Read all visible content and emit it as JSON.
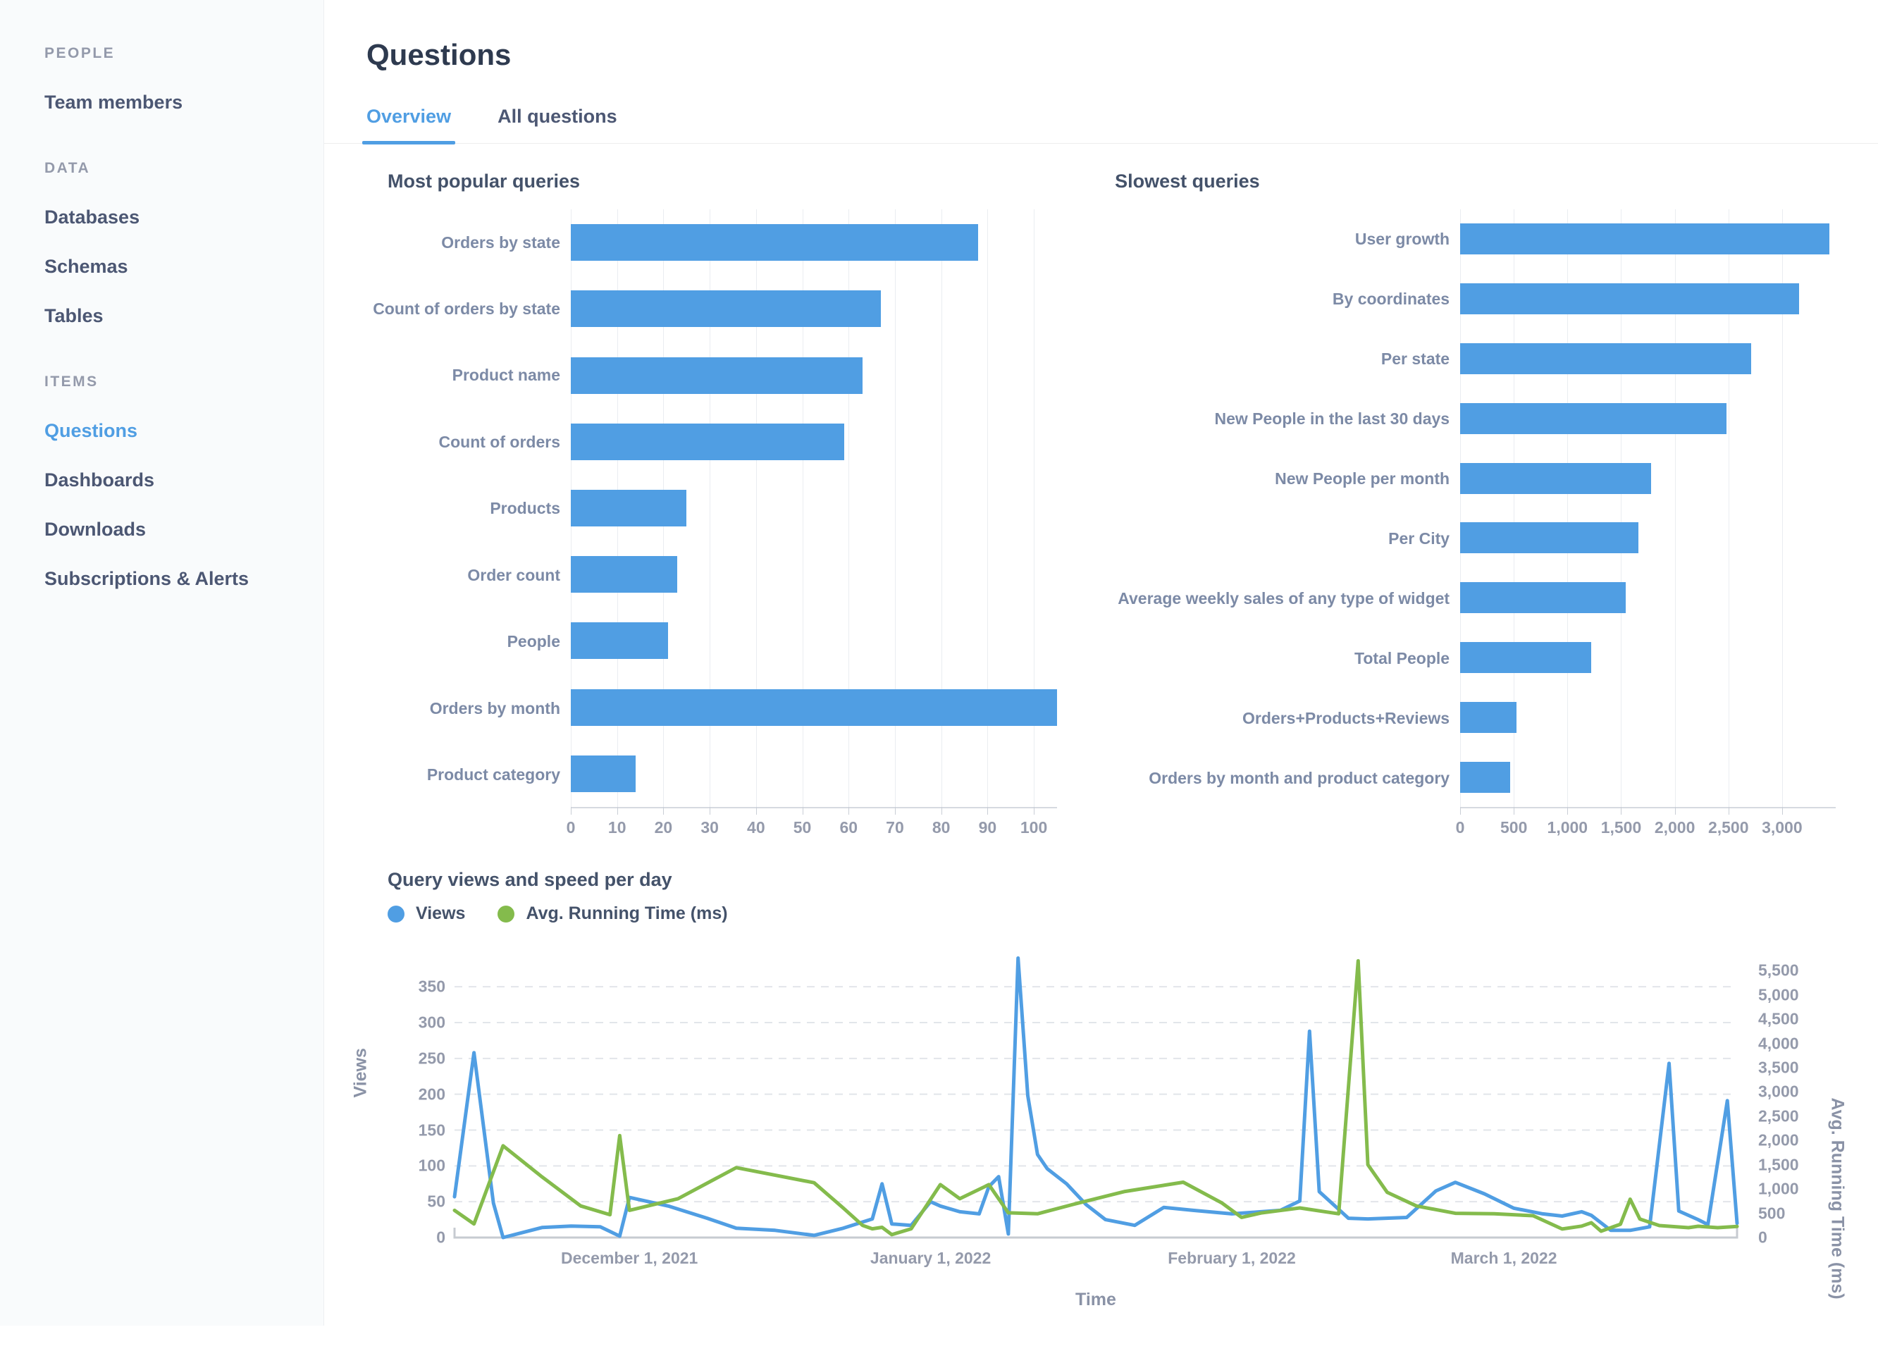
{
  "header": {
    "title": "Questions",
    "tabs": [
      "Overview",
      "All questions"
    ],
    "active_tab": "Overview"
  },
  "sidebar": {
    "sections": [
      {
        "title": "PEOPLE",
        "items": [
          {
            "label": "Team members",
            "active": false
          }
        ]
      },
      {
        "title": "DATA",
        "items": [
          {
            "label": "Databases",
            "active": false
          },
          {
            "label": "Schemas",
            "active": false
          },
          {
            "label": "Tables",
            "active": false
          }
        ]
      },
      {
        "title": "ITEMS",
        "items": [
          {
            "label": "Questions",
            "active": true
          },
          {
            "label": "Dashboards",
            "active": false
          },
          {
            "label": "Downloads",
            "active": false
          },
          {
            "label": "Subscriptions & Alerts",
            "active": false
          }
        ]
      }
    ]
  },
  "colors": {
    "accent_blue": "#509EE3",
    "accent_green": "#84BB4C",
    "bar_blue": "#509EE3"
  },
  "chart_data": [
    {
      "type": "bar",
      "orientation": "horizontal",
      "title": "Most popular queries",
      "categories": [
        "Orders by state",
        "Count of orders by state",
        "Product name",
        "Count of orders",
        "Products",
        "Order count",
        "People",
        "Orders by month",
        "Product category"
      ],
      "values": [
        88,
        67,
        63,
        59,
        25,
        23,
        21,
        105,
        14
      ],
      "xlim": [
        0,
        105
      ],
      "tick_values": [
        0,
        10,
        20,
        30,
        40,
        50,
        60,
        70,
        80,
        90,
        100
      ],
      "xticks": [
        "0",
        "10",
        "20",
        "30",
        "40",
        "50",
        "60",
        "70",
        "80",
        "90",
        "100"
      ],
      "grid": true,
      "bar_color": "#509EE3"
    },
    {
      "type": "bar",
      "orientation": "horizontal",
      "title": "Slowest queries",
      "categories": [
        "User growth",
        "By coordinates",
        "Per state",
        "New People in the last 30 days",
        "New People per month",
        "Per City",
        "Average weekly sales of any type of widget",
        "Total People",
        "Orders+Products+Reviews",
        "Orders by month and product category"
      ],
      "values": [
        3440,
        3160,
        2710,
        2480,
        1780,
        1660,
        1540,
        1220,
        525,
        465
      ],
      "xlim": [
        0,
        3500
      ],
      "tick_values": [
        0,
        500,
        1000,
        1500,
        2000,
        2500,
        3000
      ],
      "xticks": [
        "0",
        "500",
        "1,000",
        "1,500",
        "2,000",
        "2,500",
        "3,000"
      ],
      "grid": true,
      "bar_color": "#509EE3"
    },
    {
      "type": "line",
      "title": "Query views and speed per day",
      "xlabel": "Time",
      "legend": [
        "Views",
        "Avg. Running Time (ms)"
      ],
      "legend_position": "top-left",
      "grid": "horizontal-dashed",
      "x_range": [
        "2021-11-13",
        "2022-03-25"
      ],
      "xticks": [
        {
          "date": "2021-12-01",
          "label": "December 1, 2021"
        },
        {
          "date": "2022-01-01",
          "label": "January 1, 2022"
        },
        {
          "date": "2022-02-01",
          "label": "February 1, 2022"
        },
        {
          "date": "2022-03-01",
          "label": "March 1, 2022"
        }
      ],
      "left_axis": {
        "label": "Views",
        "top_value": 420,
        "tick_values": [
          0,
          50,
          100,
          150,
          200,
          250,
          300,
          350
        ],
        "ticks": [
          "0",
          "50",
          "100",
          "150",
          "200",
          "250",
          "300",
          "350"
        ]
      },
      "right_axis": {
        "label": "Avg. Running Time (ms)",
        "top_value": 6200,
        "tick_values": [
          0,
          500,
          1000,
          1500,
          2000,
          2500,
          3000,
          3500,
          4000,
          4500,
          5000,
          5500
        ],
        "ticks": [
          "0",
          "500",
          "1,000",
          "1,500",
          "2,000",
          "2,500",
          "3,000",
          "3,500",
          "4,000",
          "4,500",
          "5,000",
          "5,500"
        ]
      },
      "series": [
        {
          "name": "Views",
          "axis": "left",
          "color": "#509EE3",
          "points": [
            [
              "2021-11-13",
              57
            ],
            [
              "2021-11-15",
              258
            ],
            [
              "2021-11-17",
              48
            ],
            [
              "2021-11-18",
              0
            ],
            [
              "2021-11-22",
              14
            ],
            [
              "2021-11-25",
              16
            ],
            [
              "2021-11-28",
              15
            ],
            [
              "2021-11-30",
              2
            ],
            [
              "2021-12-01",
              56
            ],
            [
              "2021-12-05",
              44
            ],
            [
              "2021-12-09",
              27
            ],
            [
              "2021-12-12",
              13
            ],
            [
              "2021-12-16",
              10
            ],
            [
              "2021-12-20",
              3
            ],
            [
              "2021-12-23",
              13
            ],
            [
              "2021-12-26",
              26
            ],
            [
              "2021-12-27",
              75
            ],
            [
              "2021-12-28",
              19
            ],
            [
              "2021-12-30",
              17
            ],
            [
              "2022-01-01",
              50
            ],
            [
              "2022-01-02",
              44
            ],
            [
              "2022-01-04",
              36
            ],
            [
              "2022-01-06",
              33
            ],
            [
              "2022-01-07",
              71
            ],
            [
              "2022-01-08",
              85
            ],
            [
              "2022-01-09",
              5
            ],
            [
              "2022-01-10",
              390
            ],
            [
              "2022-01-11",
              198
            ],
            [
              "2022-01-12",
              116
            ],
            [
              "2022-01-13",
              96
            ],
            [
              "2022-01-15",
              75
            ],
            [
              "2022-01-17",
              46
            ],
            [
              "2022-01-19",
              25
            ],
            [
              "2022-01-22",
              17
            ],
            [
              "2022-01-25",
              42
            ],
            [
              "2022-01-28",
              38
            ],
            [
              "2022-02-01",
              33
            ],
            [
              "2022-02-04",
              36
            ],
            [
              "2022-02-06",
              38
            ],
            [
              "2022-02-08",
              51
            ],
            [
              "2022-02-09",
              288
            ],
            [
              "2022-02-10",
              64
            ],
            [
              "2022-02-13",
              27
            ],
            [
              "2022-02-15",
              26
            ],
            [
              "2022-02-19",
              28
            ],
            [
              "2022-02-22",
              65
            ],
            [
              "2022-02-24",
              77
            ],
            [
              "2022-02-27",
              61
            ],
            [
              "2022-03-02",
              41
            ],
            [
              "2022-03-05",
              33
            ],
            [
              "2022-03-07",
              30
            ],
            [
              "2022-03-09",
              36
            ],
            [
              "2022-03-10",
              31
            ],
            [
              "2022-03-12",
              10
            ],
            [
              "2022-03-14",
              10
            ],
            [
              "2022-03-16",
              15
            ],
            [
              "2022-03-18",
              243
            ],
            [
              "2022-03-19",
              37
            ],
            [
              "2022-03-21",
              25
            ],
            [
              "2022-03-22",
              18
            ],
            [
              "2022-03-24",
              191
            ],
            [
              "2022-03-25",
              20
            ]
          ]
        },
        {
          "name": "Avg. Running Time (ms)",
          "axis": "right",
          "color": "#84BB4C",
          "points": [
            [
              "2021-11-13",
              560
            ],
            [
              "2021-11-15",
              280
            ],
            [
              "2021-11-18",
              1890
            ],
            [
              "2021-11-22",
              1250
            ],
            [
              "2021-11-26",
              650
            ],
            [
              "2021-11-29",
              470
            ],
            [
              "2021-11-30",
              2100
            ],
            [
              "2021-12-01",
              560
            ],
            [
              "2021-12-06",
              800
            ],
            [
              "2021-12-12",
              1440
            ],
            [
              "2021-12-20",
              1130
            ],
            [
              "2021-12-23",
              610
            ],
            [
              "2021-12-25",
              250
            ],
            [
              "2021-12-26",
              180
            ],
            [
              "2021-12-27",
              210
            ],
            [
              "2021-12-28",
              60
            ],
            [
              "2021-12-30",
              180
            ],
            [
              "2022-01-02",
              1090
            ],
            [
              "2022-01-04",
              800
            ],
            [
              "2022-01-07",
              1090
            ],
            [
              "2022-01-09",
              510
            ],
            [
              "2022-01-12",
              490
            ],
            [
              "2022-01-16",
              700
            ],
            [
              "2022-01-21",
              950
            ],
            [
              "2022-01-27",
              1140
            ],
            [
              "2022-01-31",
              710
            ],
            [
              "2022-02-02",
              415
            ],
            [
              "2022-02-04",
              505
            ],
            [
              "2022-02-08",
              610
            ],
            [
              "2022-02-12",
              490
            ],
            [
              "2022-02-14",
              5700
            ],
            [
              "2022-02-15",
              1500
            ],
            [
              "2022-02-17",
              930
            ],
            [
              "2022-02-20",
              650
            ],
            [
              "2022-02-24",
              500
            ],
            [
              "2022-02-28",
              490
            ],
            [
              "2022-03-04",
              450
            ],
            [
              "2022-03-07",
              175
            ],
            [
              "2022-03-09",
              235
            ],
            [
              "2022-03-10",
              305
            ],
            [
              "2022-03-11",
              130
            ],
            [
              "2022-03-13",
              275
            ],
            [
              "2022-03-14",
              790
            ],
            [
              "2022-03-15",
              380
            ],
            [
              "2022-03-17",
              247
            ],
            [
              "2022-03-20",
              204
            ],
            [
              "2022-03-21",
              233
            ],
            [
              "2022-03-23",
              204
            ],
            [
              "2022-03-25",
              230
            ]
          ]
        }
      ]
    }
  ]
}
